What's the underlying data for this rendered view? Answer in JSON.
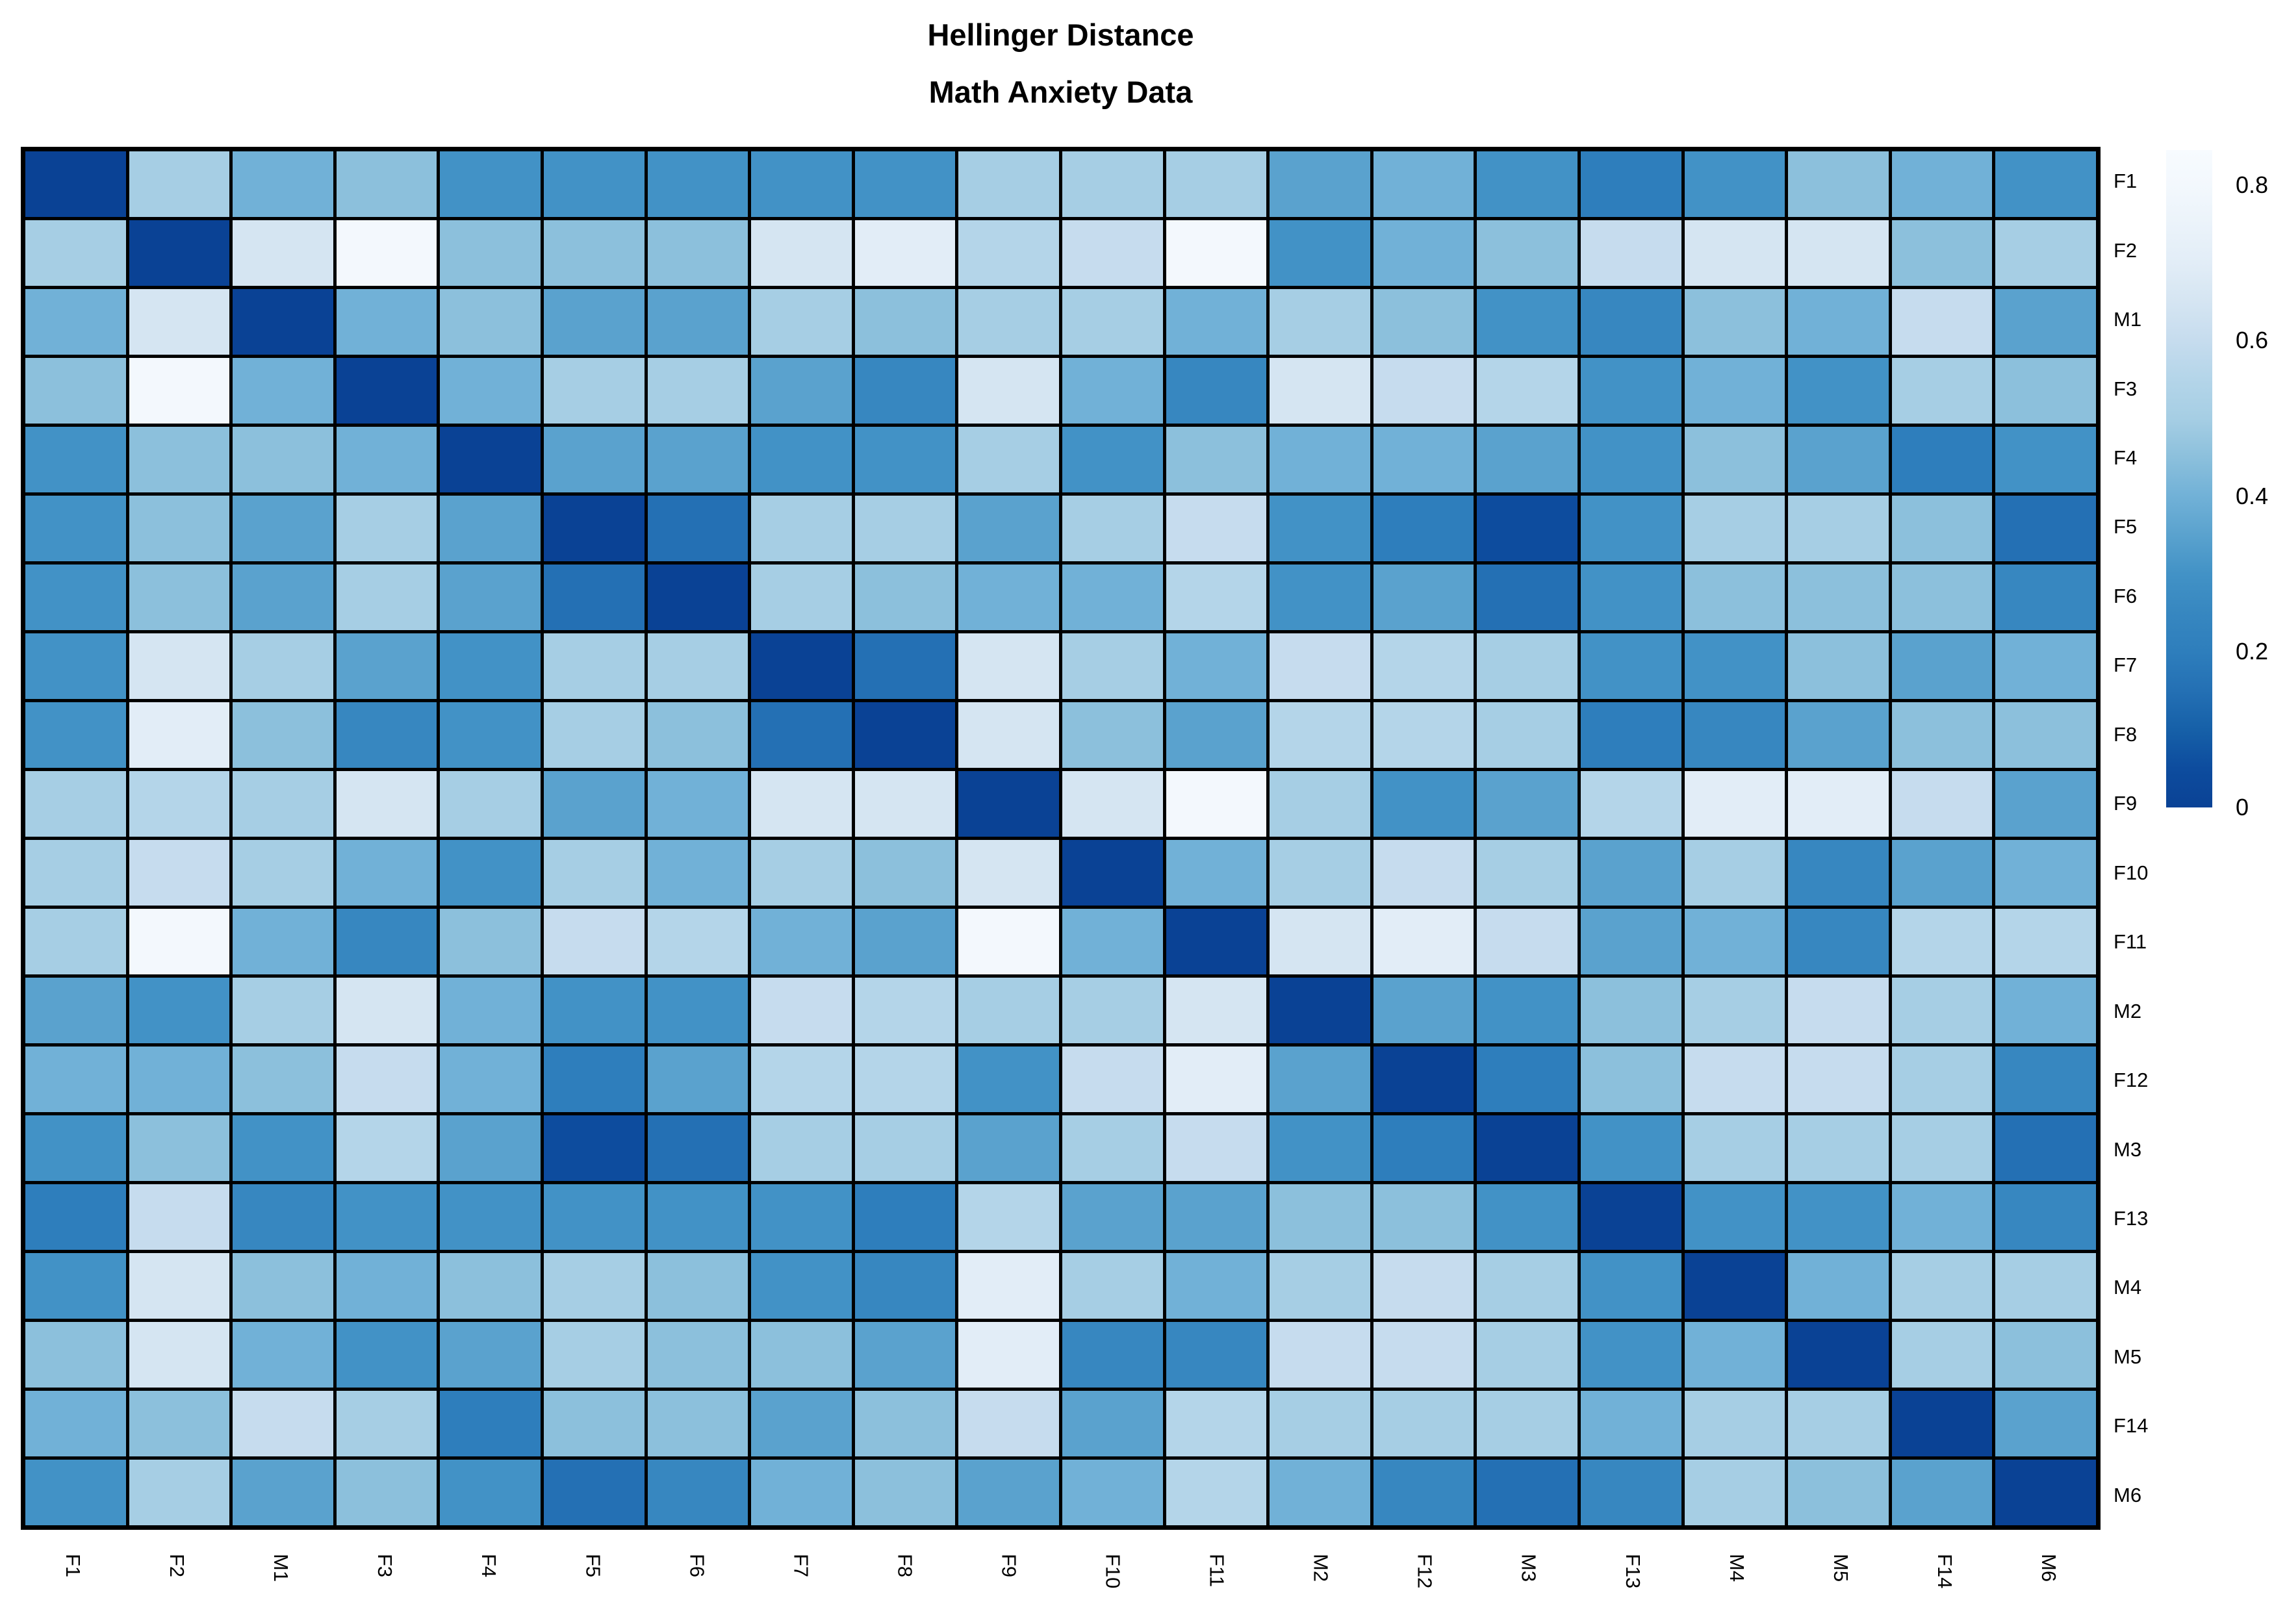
{
  "title": {
    "line1": "Hellinger Distance",
    "line2": "Math Anxiety Data"
  },
  "legend": {
    "ticks": [
      {
        "label": "0.8",
        "value": 0.8
      },
      {
        "label": "0.6",
        "value": 0.6
      },
      {
        "label": "0.4",
        "value": 0.4
      },
      {
        "label": "0.2",
        "value": 0.2
      },
      {
        "label": "0",
        "value": 0.0
      }
    ],
    "vmin": 0,
    "vmax": 0.845
  },
  "colormap": {
    "description": "reversed Blues palette, value 0 = dark blue, 0.85 = near white",
    "step": 0.05,
    "anchors": [
      "#0a4295",
      "#0d4c9e",
      "#1660a8",
      "#2470b4",
      "#2e7ebc",
      "#3787c0",
      "#4292c6",
      "#5aa2ce",
      "#71b1d7",
      "#8cc0dc",
      "#a6cee4",
      "#b4d5e9",
      "#c6dcee",
      "#d5e5f2",
      "#e2edf7",
      "#ebf3fa",
      "#f3f8fd",
      "#f7fbff"
    ]
  },
  "chart_data": {
    "type": "heatmap",
    "title": "Hellinger Distance",
    "subtitle": "Math Anxiety Data",
    "rows": [
      "F1",
      "F2",
      "M1",
      "F3",
      "F4",
      "F5",
      "F6",
      "F7",
      "F8",
      "F9",
      "F10",
      "F11",
      "M2",
      "F12",
      "M3",
      "F13",
      "M4",
      "M5",
      "F14",
      "M6"
    ],
    "cols": [
      "F1",
      "F2",
      "M1",
      "F3",
      "F4",
      "F5",
      "F6",
      "F7",
      "F8",
      "F9",
      "F10",
      "F11",
      "M2",
      "F12",
      "M3",
      "F13",
      "M4",
      "M5",
      "F14",
      "M6"
    ],
    "matrix": [
      [
        0,
        0.5,
        0.4,
        0.45,
        0.3,
        0.3,
        0.3,
        0.3,
        0.3,
        0.5,
        0.5,
        0.5,
        0.35,
        0.4,
        0.3,
        0.2,
        0.3,
        0.45,
        0.4,
        0.3
      ],
      [
        0.5,
        0,
        0.65,
        0.8,
        0.45,
        0.45,
        0.45,
        0.65,
        0.7,
        0.55,
        0.6,
        0.8,
        0.3,
        0.4,
        0.45,
        0.6,
        0.65,
        0.65,
        0.45,
        0.5
      ],
      [
        0.4,
        0.65,
        0,
        0.4,
        0.45,
        0.35,
        0.35,
        0.5,
        0.45,
        0.5,
        0.5,
        0.4,
        0.5,
        0.45,
        0.3,
        0.25,
        0.45,
        0.4,
        0.6,
        0.35
      ],
      [
        0.45,
        0.8,
        0.4,
        0,
        0.4,
        0.5,
        0.5,
        0.35,
        0.25,
        0.65,
        0.4,
        0.25,
        0.65,
        0.6,
        0.55,
        0.3,
        0.4,
        0.3,
        0.5,
        0.45
      ],
      [
        0.3,
        0.45,
        0.45,
        0.4,
        0,
        0.35,
        0.35,
        0.3,
        0.3,
        0.5,
        0.3,
        0.45,
        0.4,
        0.4,
        0.35,
        0.3,
        0.45,
        0.35,
        0.2,
        0.3
      ],
      [
        0.3,
        0.45,
        0.35,
        0.5,
        0.35,
        0,
        0.15,
        0.5,
        0.5,
        0.35,
        0.5,
        0.6,
        0.3,
        0.2,
        0.05,
        0.3,
        0.5,
        0.5,
        0.45,
        0.15
      ],
      [
        0.3,
        0.45,
        0.35,
        0.5,
        0.35,
        0.15,
        0,
        0.5,
        0.45,
        0.4,
        0.4,
        0.55,
        0.3,
        0.35,
        0.15,
        0.3,
        0.45,
        0.45,
        0.45,
        0.25
      ],
      [
        0.3,
        0.65,
        0.5,
        0.35,
        0.3,
        0.5,
        0.5,
        0,
        0.15,
        0.65,
        0.5,
        0.4,
        0.6,
        0.55,
        0.5,
        0.3,
        0.3,
        0.45,
        0.35,
        0.4
      ],
      [
        0.3,
        0.7,
        0.45,
        0.25,
        0.3,
        0.5,
        0.45,
        0.15,
        0,
        0.65,
        0.45,
        0.35,
        0.55,
        0.55,
        0.5,
        0.2,
        0.25,
        0.35,
        0.45,
        0.45
      ],
      [
        0.5,
        0.55,
        0.5,
        0.65,
        0.5,
        0.35,
        0.4,
        0.65,
        0.65,
        0,
        0.65,
        0.8,
        0.5,
        0.3,
        0.35,
        0.55,
        0.7,
        0.7,
        0.6,
        0.35
      ],
      [
        0.5,
        0.6,
        0.5,
        0.4,
        0.3,
        0.5,
        0.4,
        0.5,
        0.45,
        0.65,
        0,
        0.4,
        0.5,
        0.6,
        0.5,
        0.35,
        0.5,
        0.25,
        0.35,
        0.4
      ],
      [
        0.5,
        0.8,
        0.4,
        0.25,
        0.45,
        0.6,
        0.55,
        0.4,
        0.35,
        0.8,
        0.4,
        0,
        0.65,
        0.7,
        0.6,
        0.35,
        0.4,
        0.25,
        0.55,
        0.55
      ],
      [
        0.35,
        0.3,
        0.5,
        0.65,
        0.4,
        0.3,
        0.3,
        0.6,
        0.55,
        0.5,
        0.5,
        0.65,
        0,
        0.35,
        0.3,
        0.45,
        0.5,
        0.6,
        0.5,
        0.4
      ],
      [
        0.4,
        0.4,
        0.45,
        0.6,
        0.4,
        0.2,
        0.35,
        0.55,
        0.55,
        0.3,
        0.6,
        0.7,
        0.35,
        0,
        0.2,
        0.45,
        0.6,
        0.6,
        0.5,
        0.25
      ],
      [
        0.3,
        0.45,
        0.3,
        0.55,
        0.35,
        0.05,
        0.15,
        0.5,
        0.5,
        0.35,
        0.5,
        0.6,
        0.3,
        0.2,
        0,
        0.3,
        0.5,
        0.5,
        0.5,
        0.15
      ],
      [
        0.2,
        0.6,
        0.25,
        0.3,
        0.3,
        0.3,
        0.3,
        0.3,
        0.2,
        0.55,
        0.35,
        0.35,
        0.45,
        0.45,
        0.3,
        0,
        0.3,
        0.3,
        0.4,
        0.25
      ],
      [
        0.3,
        0.65,
        0.45,
        0.4,
        0.45,
        0.5,
        0.45,
        0.3,
        0.25,
        0.7,
        0.5,
        0.4,
        0.5,
        0.6,
        0.5,
        0.3,
        0,
        0.4,
        0.5,
        0.5
      ],
      [
        0.45,
        0.65,
        0.4,
        0.3,
        0.35,
        0.5,
        0.45,
        0.45,
        0.35,
        0.7,
        0.25,
        0.25,
        0.6,
        0.6,
        0.5,
        0.3,
        0.4,
        0,
        0.5,
        0.45
      ],
      [
        0.4,
        0.45,
        0.6,
        0.5,
        0.2,
        0.45,
        0.45,
        0.35,
        0.45,
        0.6,
        0.35,
        0.55,
        0.5,
        0.5,
        0.5,
        0.4,
        0.5,
        0.5,
        0,
        0.35
      ],
      [
        0.3,
        0.5,
        0.35,
        0.45,
        0.3,
        0.15,
        0.25,
        0.4,
        0.45,
        0.35,
        0.4,
        0.55,
        0.4,
        0.25,
        0.15,
        0.25,
        0.5,
        0.45,
        0.35,
        0
      ]
    ],
    "color_scale": {
      "palette": "Blues (reversed)",
      "domain": [
        0,
        0.85
      ],
      "legend_ticks": [
        0,
        0.2,
        0.4,
        0.6,
        0.8
      ],
      "legend_position": "right"
    },
    "grid": {
      "line_color": "#000000"
    },
    "layout": {
      "row_labels": "right",
      "col_labels": "bottom-rotated-90deg",
      "diagonal_value": 0
    }
  }
}
